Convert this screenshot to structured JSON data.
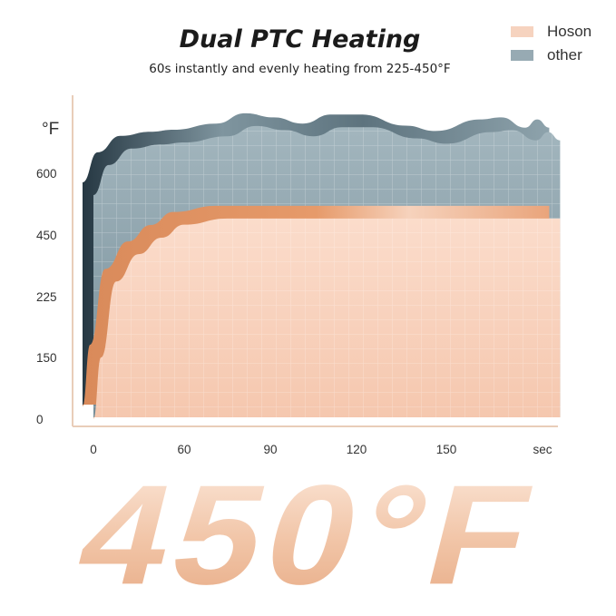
{
  "chart_data": {
    "type": "area",
    "title": "Dual PTC Heating",
    "subtitle": "60s instantly and evenly heating from 225-450°F",
    "ylabel": "°F",
    "xlabel": "sec",
    "y_ticks": [
      0,
      150,
      225,
      450,
      600
    ],
    "x_ticks": [
      0,
      60,
      90,
      120,
      150
    ],
    "x_unit_label": "sec",
    "grid": true,
    "legend_position": "top-right",
    "series": [
      {
        "name": "Hoson",
        "color": "#f6cdb4",
        "edge_color": "#e39a6c",
        "points": [
          [
            0,
            0
          ],
          [
            5,
            150
          ],
          [
            15,
            280
          ],
          [
            30,
            380
          ],
          [
            45,
            440
          ],
          [
            60,
            475
          ],
          [
            75,
            490
          ],
          [
            188,
            490
          ]
        ]
      },
      {
        "name": "other",
        "color": "#8fa6b0",
        "edge_color": "#4f6570",
        "points": [
          [
            0,
            547
          ],
          [
            10,
            620
          ],
          [
            25,
            660
          ],
          [
            45,
            670
          ],
          [
            60,
            675
          ],
          [
            75,
            690
          ],
          [
            85,
            715
          ],
          [
            95,
            705
          ],
          [
            105,
            690
          ],
          [
            115,
            712
          ],
          [
            125,
            712
          ],
          [
            140,
            685
          ],
          [
            150,
            672
          ],
          [
            165,
            700
          ],
          [
            172,
            705
          ],
          [
            180,
            680
          ],
          [
            184,
            700
          ],
          [
            188,
            680
          ]
        ]
      }
    ]
  },
  "headline": "450°F"
}
